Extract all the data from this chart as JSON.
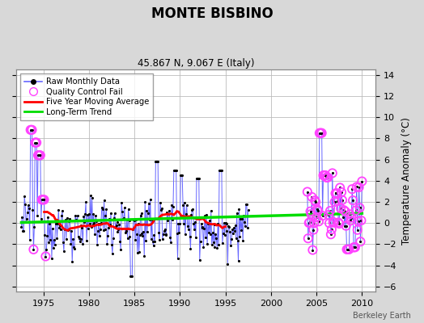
{
  "title": "MONTE BISBINO",
  "subtitle": "45.867 N, 9.067 E (Italy)",
  "ylabel_right": "Temperature Anomaly (°C)",
  "watermark": "Berkeley Earth",
  "xlim": [
    1972.0,
    2011.5
  ],
  "ylim": [
    -6.5,
    14.5
  ],
  "yticks": [
    -6,
    -4,
    -2,
    0,
    2,
    4,
    6,
    8,
    10,
    12,
    14
  ],
  "xticks": [
    1975,
    1980,
    1985,
    1990,
    1995,
    2000,
    2005,
    2010
  ],
  "bg_color": "#d8d8d8",
  "plot_bg_color": "#ffffff",
  "raw_line_color": "#6666ff",
  "raw_dot_color": "#000000",
  "qc_fail_color": "#ff44ff",
  "moving_avg_color": "#ff0000",
  "trend_color": "#00dd00",
  "grid_color": "#bbbbbb",
  "seed": 12345,
  "gap_start": 1997.5,
  "gap_end": 2004.0
}
